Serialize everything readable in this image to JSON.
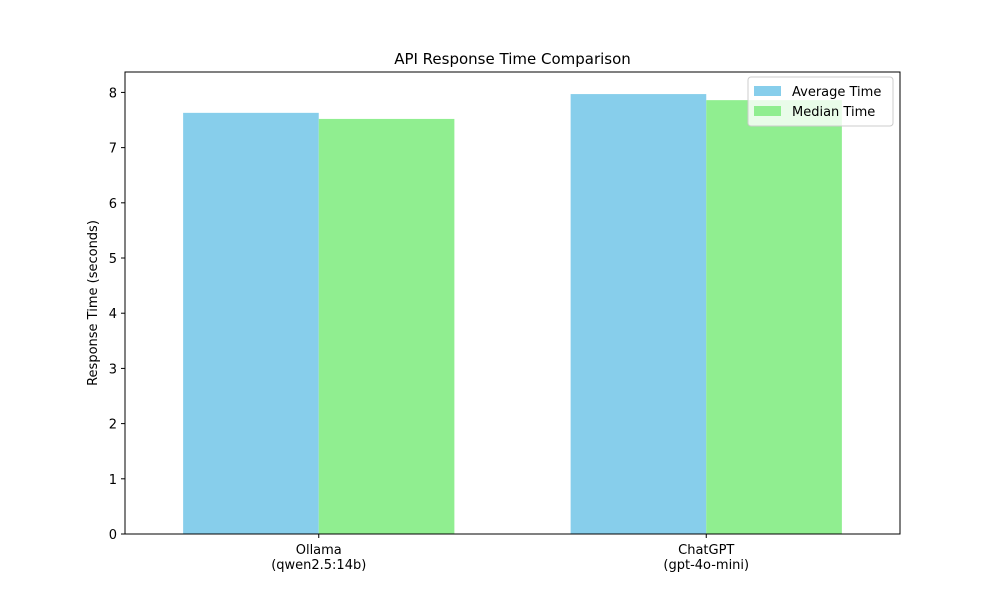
{
  "chart_data": {
    "type": "bar",
    "title": "API Response Time Comparison",
    "xlabel": "",
    "ylabel": "Response Time (seconds)",
    "categories": [
      [
        "Ollama",
        "(qwen2.5:14b)"
      ],
      [
        "ChatGPT",
        "(gpt-4o-mini)"
      ]
    ],
    "series": [
      {
        "name": "Average Time",
        "color": "#87ceeb",
        "values": [
          7.63,
          7.97
        ]
      },
      {
        "name": "Median Time",
        "color": "#90ee90",
        "values": [
          7.52,
          7.86
        ]
      }
    ],
    "ylim": [
      0,
      8.37
    ],
    "yticks": [
      "0",
      "1",
      "2",
      "3",
      "4",
      "5",
      "6",
      "7",
      "8"
    ],
    "grid": false,
    "legend_position": "top-right"
  }
}
